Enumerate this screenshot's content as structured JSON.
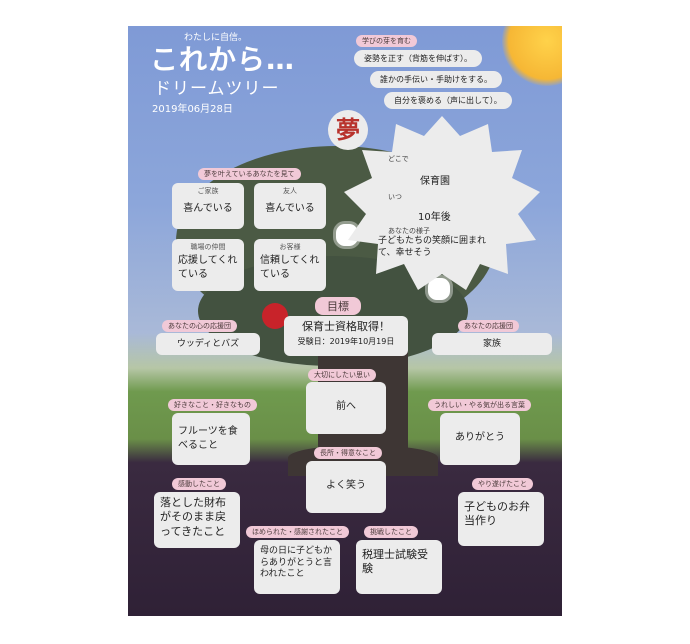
{
  "header": {
    "logo_small": "わたしに自信。",
    "logo_main": "これから…",
    "subtitle": "ドリームツリー",
    "date": "2019年06月28日"
  },
  "learn": {
    "tag": "学びの芽を育む",
    "items": [
      "姿勢を正す（背筋を伸ばす）。",
      "誰かの手伝い・手助けをする。",
      "自分を褒める（声に出して）。"
    ]
  },
  "dream": {
    "symbol": "夢",
    "where_label": "どこで",
    "where": "保育園",
    "when_label": "いつ",
    "when": "10年後",
    "state_label": "あなたの様子",
    "state": "子どもたちの笑顔に囲まれて、幸せそう"
  },
  "supporters": {
    "tag": "夢を叶えているあなたを見て",
    "cards": [
      {
        "who": "ご家族",
        "feel": "喜んでいる"
      },
      {
        "who": "友人",
        "feel": "喜んでいる"
      },
      {
        "who": "職場の仲間",
        "feel": "応援してくれている"
      },
      {
        "who": "お客様",
        "feel": "信頼してくれている"
      }
    ]
  },
  "goal": {
    "tag": "目標",
    "text": "保育士資格取得！",
    "exam": "受験日：2019年10月19日"
  },
  "heart_supporter": {
    "tag": "あなたの心の応援団",
    "value": "ウッディとバズ"
  },
  "supporter": {
    "tag": "あなたの応援団",
    "value": "家族"
  },
  "values": {
    "tag": "大切にしたい思い",
    "value": "前へ"
  },
  "likes": {
    "tag": "好きなこと・好きなもの",
    "value": "フルーツを食べること"
  },
  "motivation": {
    "tag": "うれしい・やる気が出る言葉",
    "value": "ありがとう"
  },
  "strengths": {
    "tag": "長所・得意なこと",
    "value": "よく笑う"
  },
  "moved": {
    "tag": "感動したこと",
    "value": "落とした財布がそのまま戻ってきたこと"
  },
  "achieved": {
    "tag": "やり遂げたこと",
    "value": "子どものお弁当作り"
  },
  "praised": {
    "tag": "ほめられた・感謝されたこと",
    "value": "母の日に子どもからありがとうと言われたこと"
  },
  "challenged": {
    "tag": "挑戦したこと",
    "value": "税理士試験受験"
  },
  "colors": {
    "tag_pink": "#f1c9d7",
    "card": "#ececec",
    "dream_red": "#b8322c",
    "apple": "#c8232a"
  }
}
